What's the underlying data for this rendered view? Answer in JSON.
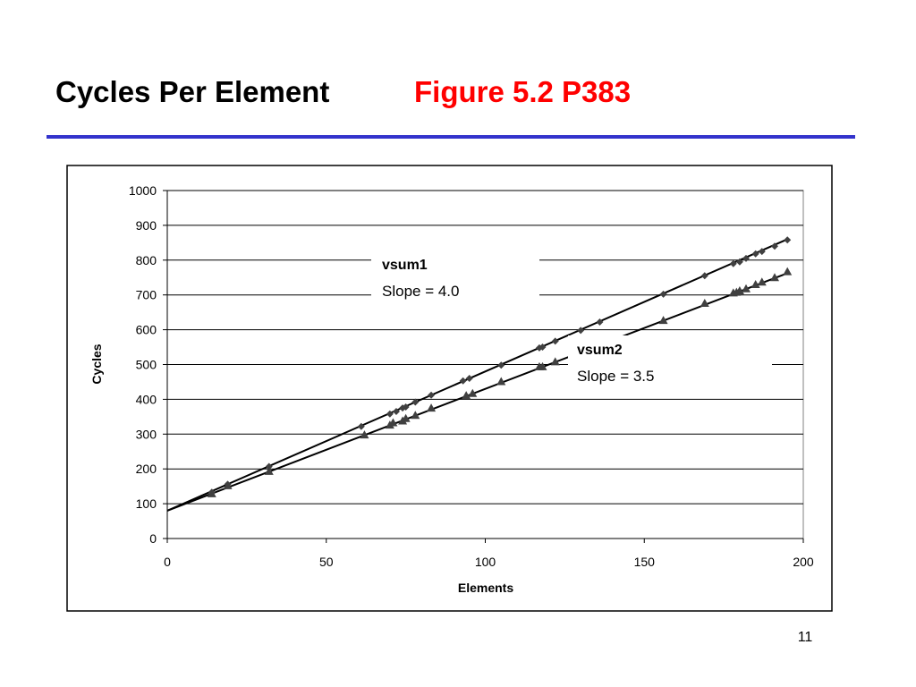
{
  "slide": {
    "title": "Cycles Per Element",
    "subtitle": "Figure 5.2 P383",
    "page_number": "11"
  },
  "chart_data": {
    "type": "scatter",
    "x_label": "Elements",
    "y_label": "Cycles",
    "xlim": [
      0,
      200
    ],
    "xticks": [
      0,
      50,
      100,
      150,
      200
    ],
    "ylim": [
      0,
      1000
    ],
    "yticks": [
      0,
      100,
      200,
      300,
      400,
      500,
      600,
      700,
      800,
      900,
      1000
    ],
    "grid": true,
    "series": [
      {
        "name": "vsum1",
        "annotation": "Slope = 4.0",
        "marker": "diamond",
        "color": "#404040",
        "fit": {
          "intercept": 80,
          "slope": 4.0
        },
        "x": [
          14,
          19,
          32,
          61,
          70,
          72,
          74,
          75,
          78,
          83,
          93,
          95,
          105,
          117,
          118,
          122,
          130,
          136,
          156,
          169,
          178,
          180,
          182,
          185,
          187,
          191,
          195
        ],
        "values": [
          133,
          156,
          207,
          322,
          358,
          365,
          375,
          378,
          392,
          412,
          453,
          460,
          498,
          548,
          550,
          567,
          598,
          622,
          702,
          755,
          790,
          795,
          805,
          818,
          825,
          840,
          858
        ]
      },
      {
        "name": "vsum2",
        "annotation": "Slope = 3.5",
        "marker": "triangle",
        "color": "#404040",
        "fit": {
          "intercept": 80,
          "slope": 3.5
        },
        "x": [
          14,
          19,
          32,
          62,
          70,
          71,
          74,
          75,
          78,
          83,
          94,
          96,
          105,
          117,
          118,
          122,
          156,
          169,
          178,
          179,
          180,
          182,
          185,
          187,
          191,
          195
        ],
        "values": [
          129,
          152,
          193,
          298,
          326,
          333,
          338,
          345,
          354,
          375,
          411,
          417,
          451,
          494,
          494,
          508,
          627,
          676,
          706,
          708,
          712,
          718,
          730,
          737,
          750,
          767
        ]
      }
    ]
  }
}
